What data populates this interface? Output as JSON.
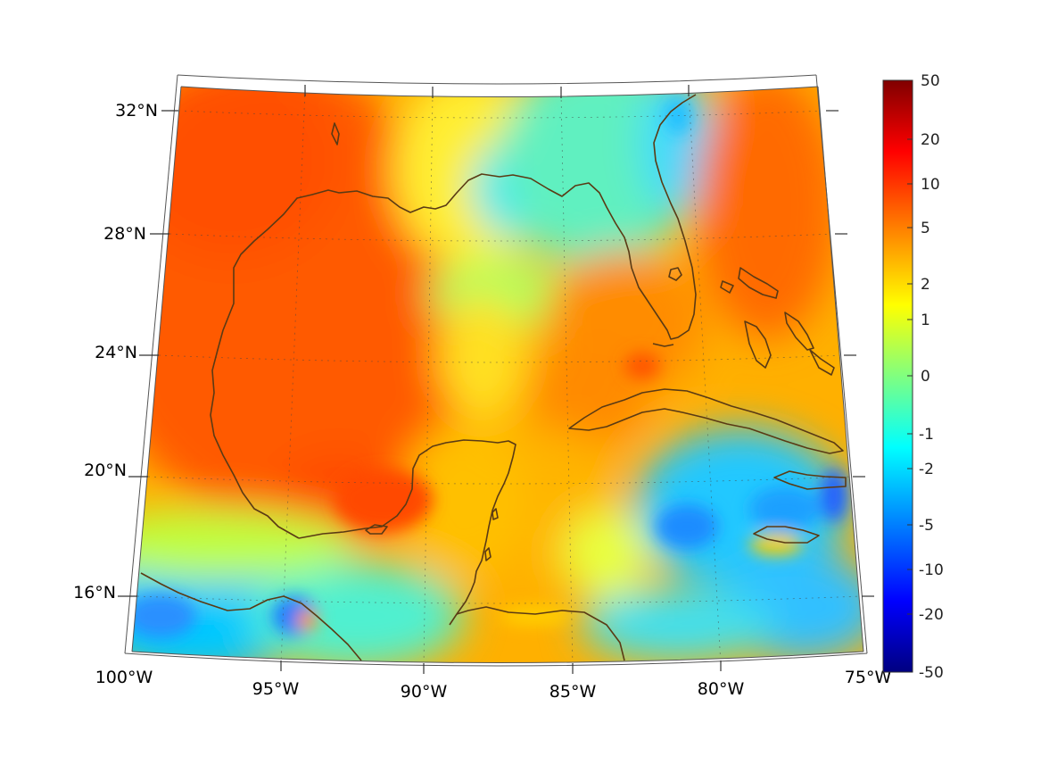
{
  "map": {
    "projection": "conic",
    "lon_range": [
      -100,
      -75
    ],
    "lat_range": [
      14,
      33
    ],
    "lon_tick_labels": [
      "100°W",
      "95°W",
      "90°W",
      "85°W",
      "80°W",
      "75°W"
    ],
    "lat_tick_labels": [
      "32°N",
      "28°N",
      "24°N",
      "20°N",
      "16°N"
    ],
    "gridlines": "dotted",
    "coastline_color": "#5a3a14",
    "regions": [
      "Gulf of Mexico",
      "Florida",
      "Cuba",
      "Yucatan Peninsula",
      "Bahamas",
      "Jamaica",
      "Hispaniola",
      "Central America"
    ]
  },
  "colorbar": {
    "colormap": "jet",
    "scale": "symmetric-log",
    "tick_labels": [
      "50",
      "20",
      "10",
      "5",
      "2",
      "1",
      "0",
      "-1",
      "-2",
      "-5",
      "-10",
      "-20",
      "-50"
    ],
    "range": [
      -50,
      50
    ],
    "colors": [
      "#800000",
      "#ff0000",
      "#ff8000",
      "#ffff00",
      "#80ff80",
      "#00ffff",
      "#0080ff",
      "#0000ff",
      "#000080"
    ]
  }
}
